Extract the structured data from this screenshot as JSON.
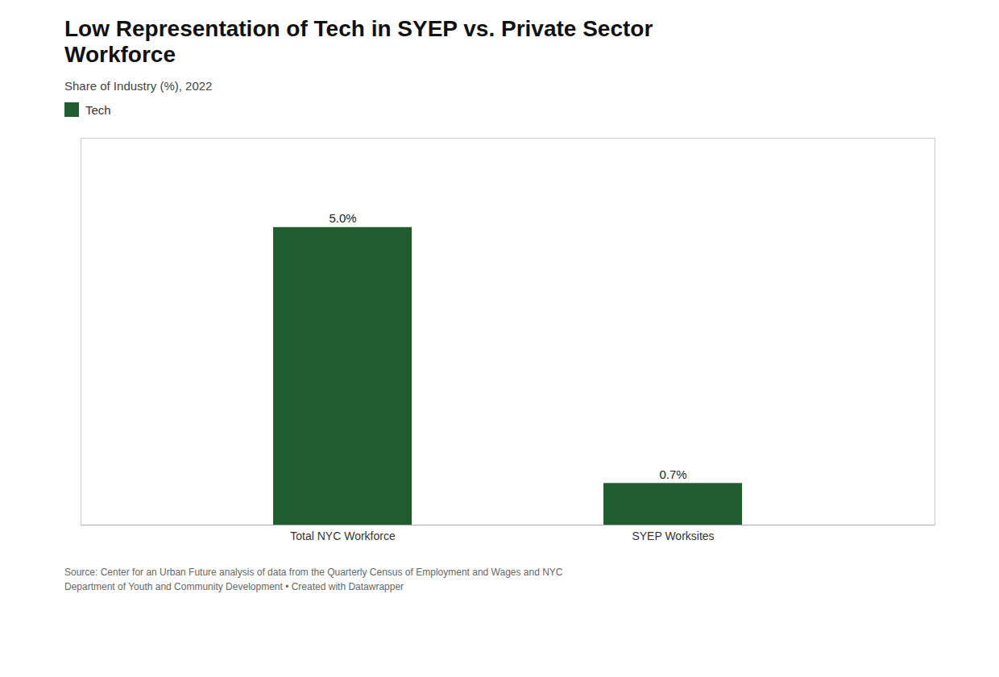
{
  "chart_data": {
    "type": "bar",
    "title": "Low Representation of Tech in SYEP vs. Private Sector\nWorkforce",
    "subtitle": "Share of Industry (%), 2022",
    "categories": [
      "Total NYC Workforce",
      "SYEP Worksites"
    ],
    "series": [
      {
        "name": "Tech",
        "color": "#1f5c2e",
        "values": [
          5.0,
          0.7
        ],
        "value_labels": [
          "5.0%",
          "0.7%"
        ]
      }
    ],
    "ylim": [
      0,
      6.5
    ],
    "grid": false,
    "data_labels": true,
    "tick_labels": "x",
    "source": "Source: Center for an Urban Future analysis of data from the Quarterly Census of Employment and Wages and NYC\nDepartment of Youth and Community Development • Created with Datawrapper"
  }
}
